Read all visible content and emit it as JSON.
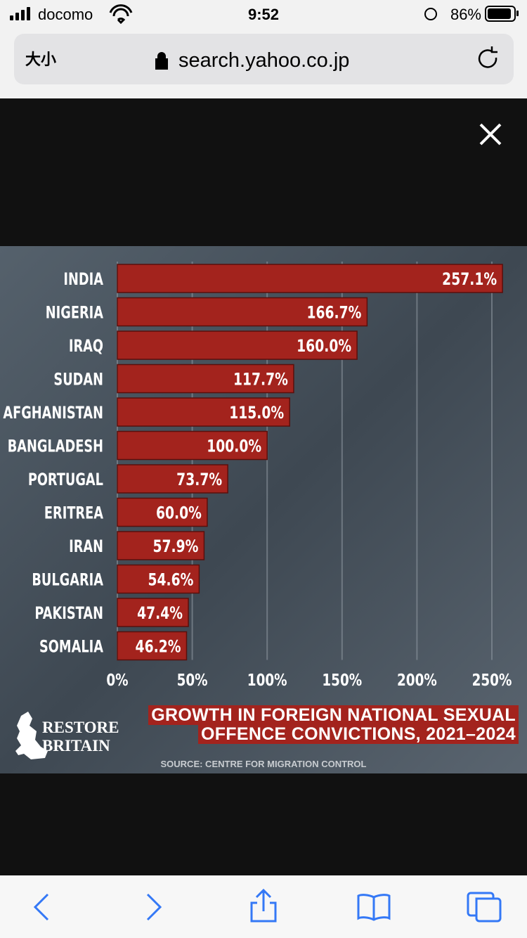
{
  "status_bar": {
    "carrier": "docomo",
    "time": "9:52",
    "battery": "86%"
  },
  "address_bar": {
    "text_size": "大小",
    "url": "search.yahoo.co.jp"
  },
  "chart_data": {
    "type": "bar",
    "orientation": "horizontal",
    "title": "GROWTH IN FOREIGN NATIONAL SEXUAL OFFENCE CONVICTIONS, 2021–2024",
    "source": "SOURCE: CENTRE FOR MIGRATION CONTROL",
    "brand": "RESTORE BRITAIN",
    "categories": [
      "INDIA",
      "NIGERIA",
      "IRAQ",
      "SUDAN",
      "AFGHANISTAN",
      "BANGLADESH",
      "PORTUGAL",
      "ERITREA",
      "IRAN",
      "BULGARIA",
      "PAKISTAN",
      "SOMALIA"
    ],
    "values": [
      257.1,
      166.7,
      160.0,
      117.7,
      115.0,
      100.0,
      73.7,
      60.0,
      57.9,
      54.6,
      47.4,
      46.2
    ],
    "value_labels": [
      "257.1%",
      "166.7%",
      "160.0%",
      "117.7%",
      "115.0%",
      "100.0%",
      "73.7%",
      "60.0%",
      "57.9%",
      "54.6%",
      "47.4%",
      "46.2%"
    ],
    "color": "#a3231d",
    "xlim": [
      0,
      262
    ],
    "xticks": [
      {
        "value": 0,
        "label": "0%"
      },
      {
        "value": 50,
        "label": "50%"
      },
      {
        "value": 100,
        "label": "100%"
      },
      {
        "value": 150,
        "label": "150%"
      },
      {
        "value": 200,
        "label": "200%"
      },
      {
        "value": 250,
        "label": "250%"
      }
    ],
    "grid": true
  }
}
